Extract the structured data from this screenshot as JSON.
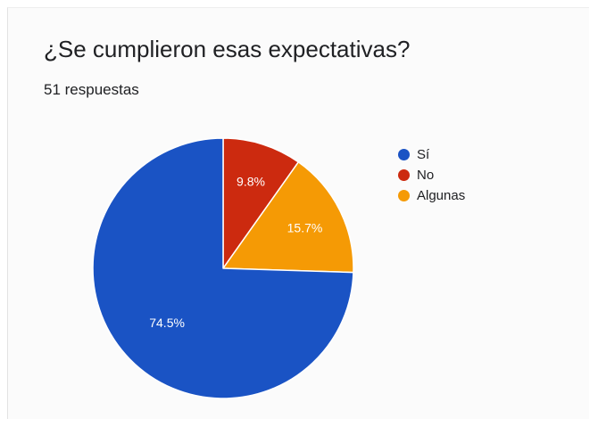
{
  "header": {
    "title": "¿Se cumplieron esas expectativas?",
    "responses": "51 respuestas"
  },
  "chart_data": {
    "type": "pie",
    "title": "¿Se cumplieron esas expectativas?",
    "slices": [
      {
        "label": "Sí",
        "value": 74.5,
        "value_label": "74.5%",
        "color": "#1a53c4"
      },
      {
        "label": "No",
        "value": 9.8,
        "value_label": "9.8%",
        "color": "#cc2a0f"
      },
      {
        "label": "Algunas",
        "value": 15.7,
        "value_label": "15.7%",
        "color": "#f59a05"
      }
    ],
    "legend_position": "right"
  }
}
